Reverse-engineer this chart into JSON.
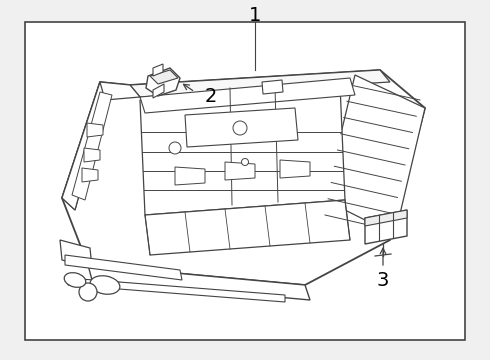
{
  "background_color": "#f0f0f0",
  "border_color": "#444444",
  "line_color": "#444444",
  "label1_text": "1",
  "label2_text": "2",
  "label3_text": "3",
  "figsize": [
    4.9,
    3.6
  ],
  "dpi": 100,
  "border": [
    0.05,
    0.05,
    0.9,
    0.88
  ]
}
